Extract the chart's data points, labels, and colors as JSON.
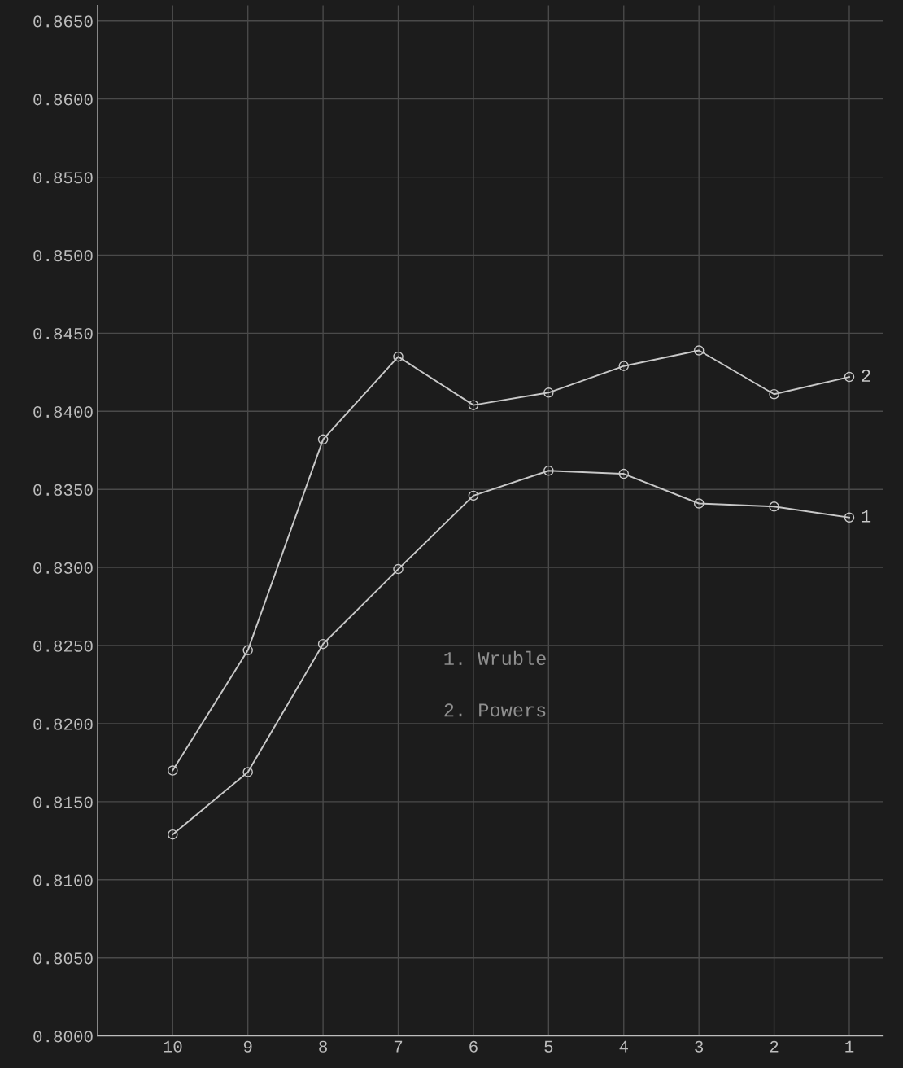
{
  "chart_data": {
    "type": "line",
    "categories": [
      "10",
      "9",
      "8",
      "7",
      "6",
      "5",
      "4",
      "3",
      "2",
      "1"
    ],
    "series": [
      {
        "name": "1",
        "color": "#c8c8c8",
        "values": [
          0.8129,
          0.8169,
          0.8251,
          0.8299,
          0.8346,
          0.8362,
          0.836,
          0.8341,
          0.8339,
          0.8332
        ]
      },
      {
        "name": "2",
        "color": "#c8c8c8",
        "values": [
          0.817,
          0.8247,
          0.8382,
          0.8435,
          0.8404,
          0.8412,
          0.8429,
          0.8439,
          0.8411,
          0.8422
        ]
      }
    ],
    "annotations": [
      "1. Wruble",
      "2. Powers"
    ],
    "ylim": [
      0.8,
      0.866
    ],
    "yticks": [
      {
        "value": 0.8,
        "label": "0.8000"
      },
      {
        "value": 0.805,
        "label": "0.8050"
      },
      {
        "value": 0.81,
        "label": "0.8100"
      },
      {
        "value": 0.815,
        "label": "0.8150"
      },
      {
        "value": 0.82,
        "label": "0.8200"
      },
      {
        "value": 0.825,
        "label": "0.8250"
      },
      {
        "value": 0.83,
        "label": "0.8300"
      },
      {
        "value": 0.835,
        "label": "0.8350"
      },
      {
        "value": 0.84,
        "label": "0.8400"
      },
      {
        "value": 0.845,
        "label": "0.8450"
      },
      {
        "value": 0.85,
        "label": "0.8500"
      },
      {
        "value": 0.855,
        "label": "0.8550"
      },
      {
        "value": 0.86,
        "label": "0.8600"
      },
      {
        "value": 0.865,
        "label": "0.8650"
      }
    ],
    "grid": true,
    "marker": "circle",
    "line_style": "solid",
    "legend": false
  }
}
